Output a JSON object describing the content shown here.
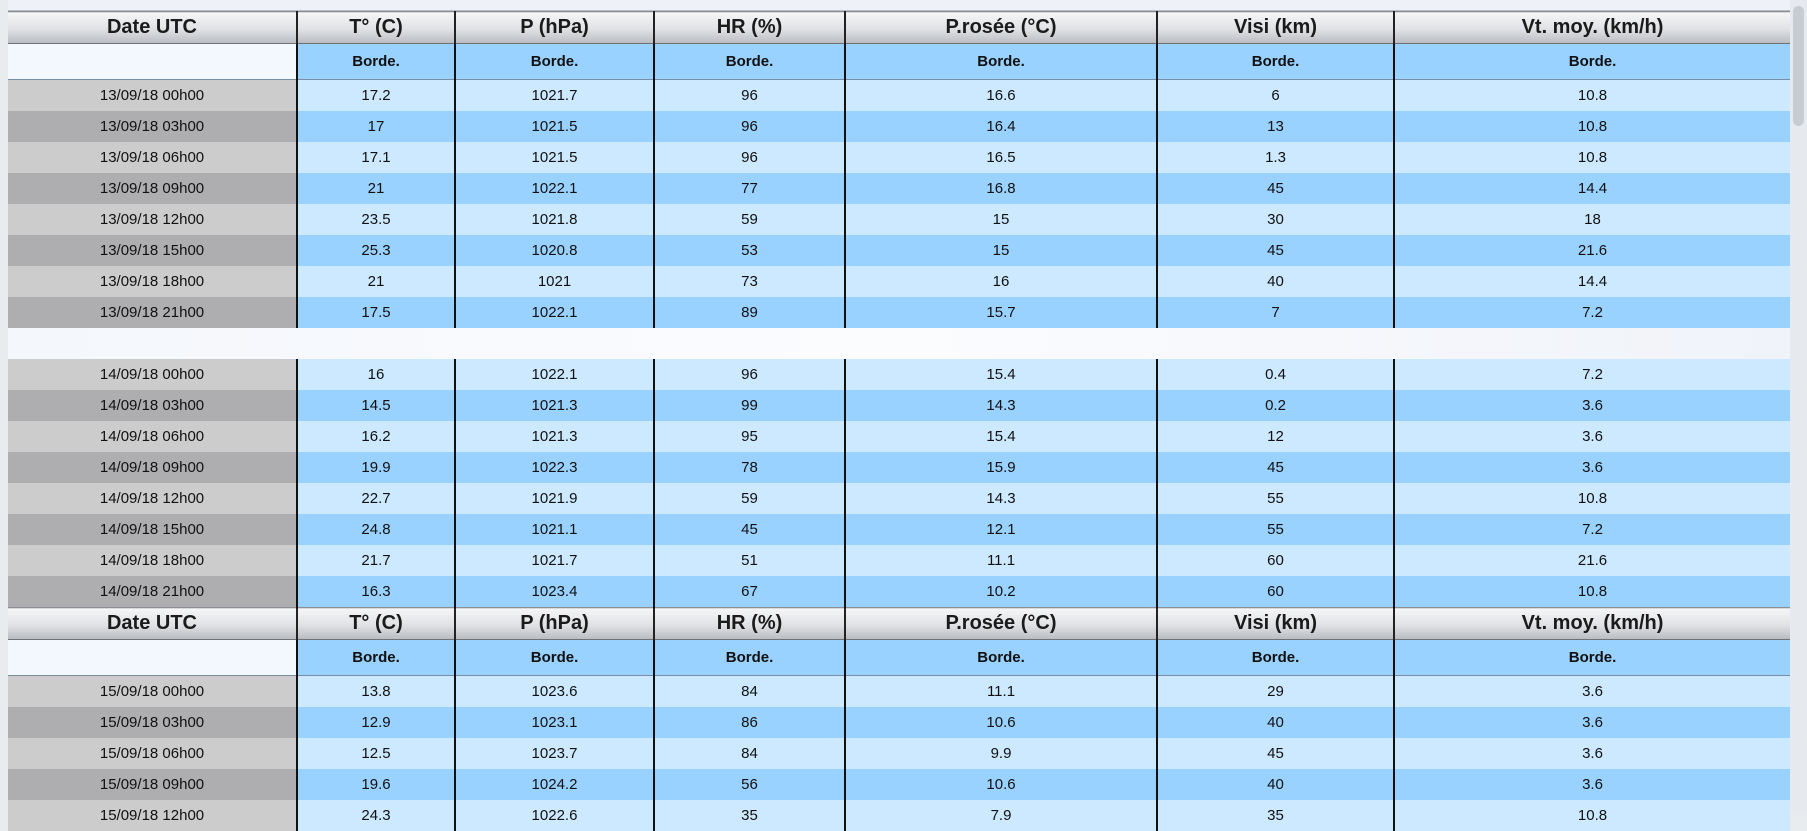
{
  "table": {
    "headers": [
      "Date UTC",
      "T° (C)",
      "P (hPa)",
      "HR (%)",
      "P.rosée (°C)",
      "Visi (km)",
      "Vt. moy. (km/h)"
    ],
    "subheader": [
      "",
      "Borde.",
      "Borde.",
      "Borde.",
      "Borde.",
      "Borde.",
      "Borde."
    ],
    "day1_rows": [
      [
        "13/09/18 00h00",
        "17.2",
        "1021.7",
        "96",
        "16.6",
        "6",
        "10.8"
      ],
      [
        "13/09/18 03h00",
        "17",
        "1021.5",
        "96",
        "16.4",
        "13",
        "10.8"
      ],
      [
        "13/09/18 06h00",
        "17.1",
        "1021.5",
        "96",
        "16.5",
        "1.3",
        "10.8"
      ],
      [
        "13/09/18 09h00",
        "21",
        "1022.1",
        "77",
        "16.8",
        "45",
        "14.4"
      ],
      [
        "13/09/18 12h00",
        "23.5",
        "1021.8",
        "59",
        "15",
        "30",
        "18"
      ],
      [
        "13/09/18 15h00",
        "25.3",
        "1020.8",
        "53",
        "15",
        "45",
        "21.6"
      ],
      [
        "13/09/18 18h00",
        "21",
        "1021",
        "73",
        "16",
        "40",
        "14.4"
      ],
      [
        "13/09/18 21h00",
        "17.5",
        "1022.1",
        "89",
        "15.7",
        "7",
        "7.2"
      ]
    ],
    "day2_rows": [
      [
        "14/09/18 00h00",
        "16",
        "1022.1",
        "96",
        "15.4",
        "0.4",
        "7.2"
      ],
      [
        "14/09/18 03h00",
        "14.5",
        "1021.3",
        "99",
        "14.3",
        "0.2",
        "3.6"
      ],
      [
        "14/09/18 06h00",
        "16.2",
        "1021.3",
        "95",
        "15.4",
        "12",
        "3.6"
      ],
      [
        "14/09/18 09h00",
        "19.9",
        "1022.3",
        "78",
        "15.9",
        "45",
        "3.6"
      ],
      [
        "14/09/18 12h00",
        "22.7",
        "1021.9",
        "59",
        "14.3",
        "55",
        "10.8"
      ],
      [
        "14/09/18 15h00",
        "24.8",
        "1021.1",
        "45",
        "12.1",
        "55",
        "7.2"
      ],
      [
        "14/09/18 18h00",
        "21.7",
        "1021.7",
        "51",
        "11.1",
        "60",
        "21.6"
      ],
      [
        "14/09/18 21h00",
        "16.3",
        "1023.4",
        "67",
        "10.2",
        "60",
        "10.8"
      ]
    ],
    "day3_rows": [
      [
        "15/09/18 00h00",
        "13.8",
        "1023.6",
        "84",
        "11.1",
        "29",
        "3.6"
      ],
      [
        "15/09/18 03h00",
        "12.9",
        "1023.1",
        "86",
        "10.6",
        "40",
        "3.6"
      ],
      [
        "15/09/18 06h00",
        "12.5",
        "1023.7",
        "84",
        "9.9",
        "45",
        "3.6"
      ],
      [
        "15/09/18 09h00",
        "19.6",
        "1024.2",
        "56",
        "10.6",
        "40",
        "3.6"
      ],
      [
        "15/09/18 12h00",
        "24.3",
        "1022.6",
        "35",
        "7.9",
        "35",
        "10.8"
      ]
    ]
  }
}
